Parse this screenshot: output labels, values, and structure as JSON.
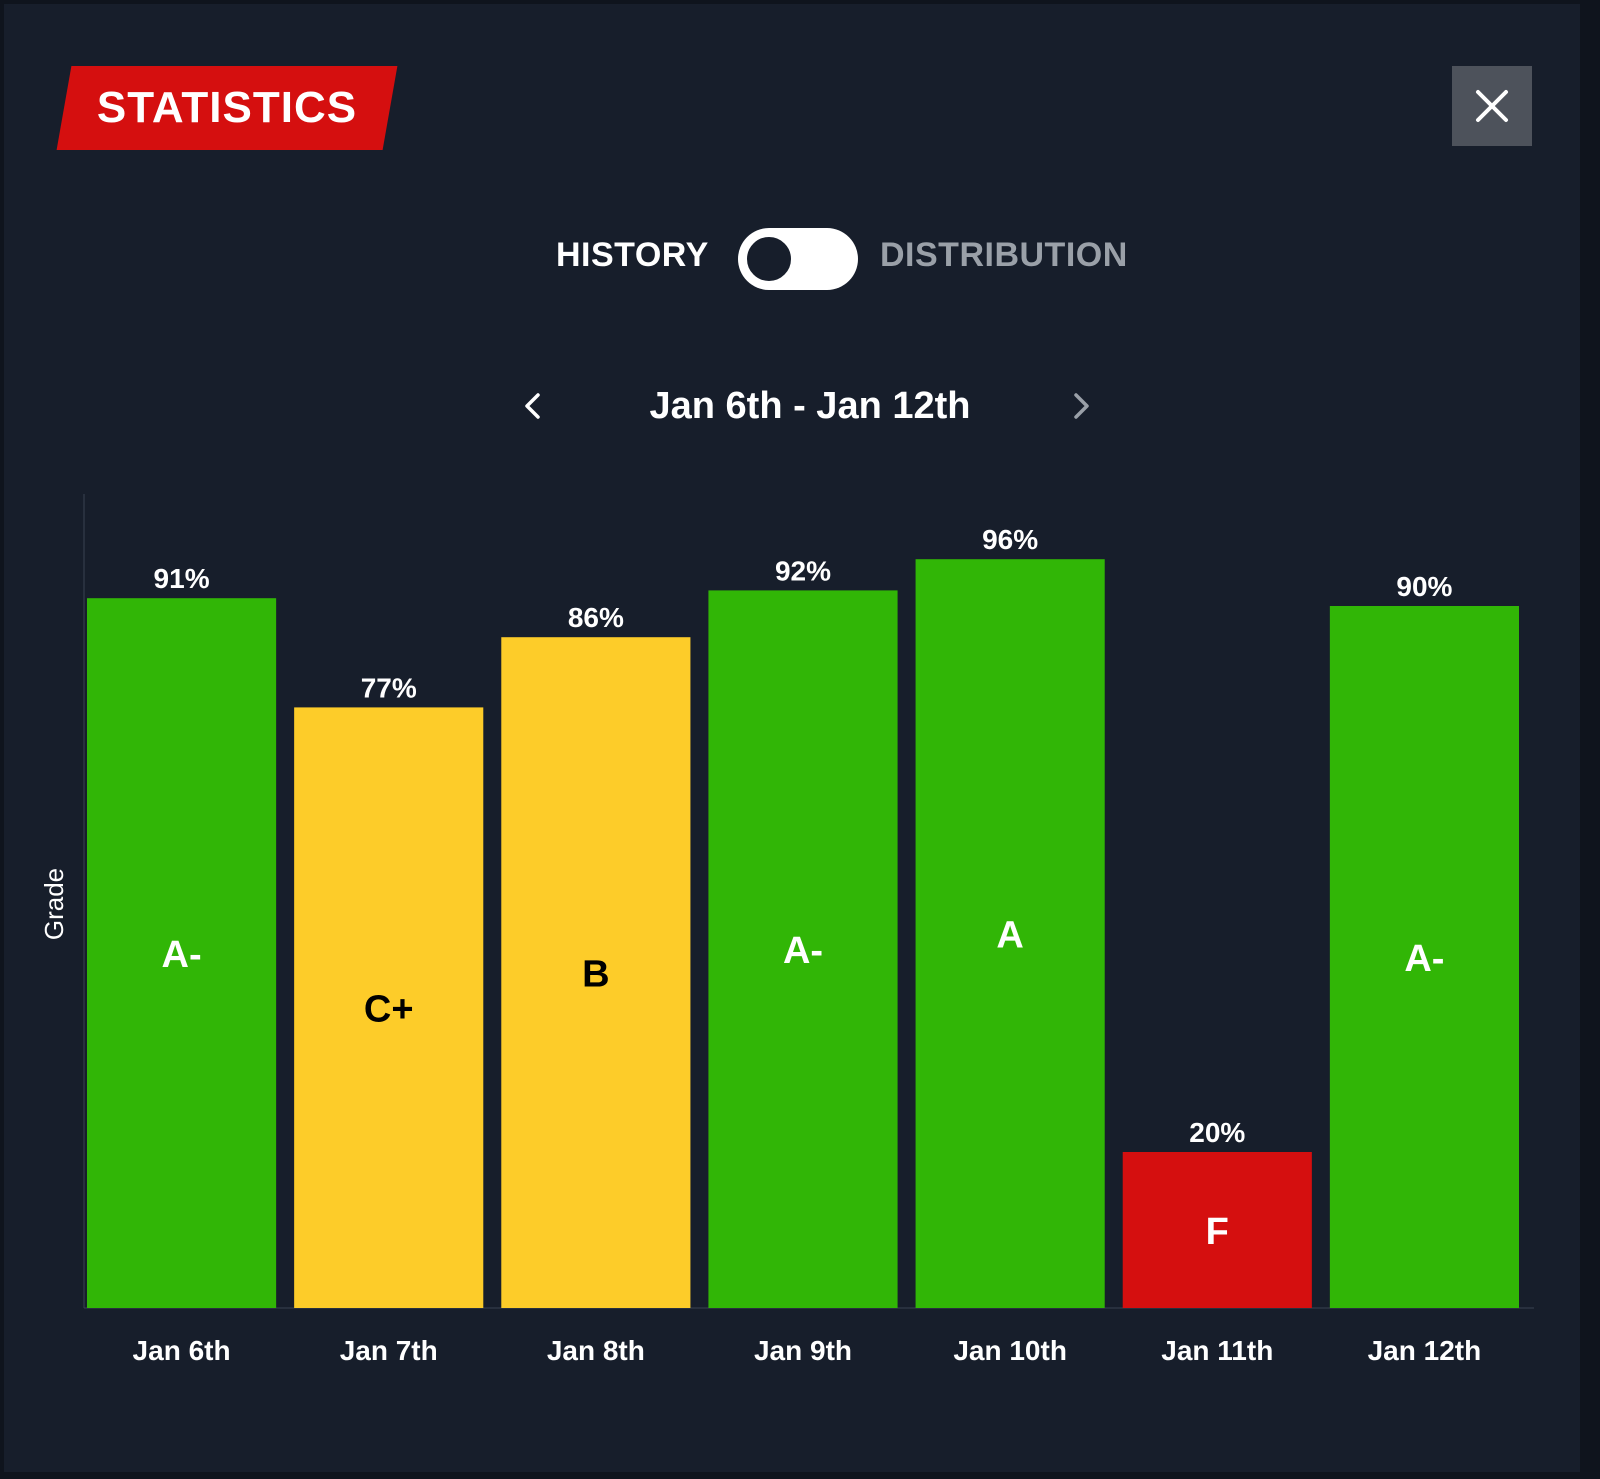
{
  "header": {
    "title": "STATISTICS",
    "close_icon": "close-icon"
  },
  "toggle": {
    "left_label": "HISTORY",
    "right_label": "DISTRIBUTION",
    "state": "HISTORY"
  },
  "week_nav": {
    "label": "Jan 6th - Jan 12th",
    "prev_icon": "chevron-left-icon",
    "next_icon": "chevron-right-icon"
  },
  "colors": {
    "background": "#171e2b",
    "badge": "#d50f0f",
    "green": "#31b606",
    "yellow": "#fdcc29",
    "red": "#d50f0f"
  },
  "chart_data": {
    "type": "bar",
    "ylabel": "Grade",
    "categories": [
      "Jan 6th",
      "Jan 7th",
      "Jan 8th",
      "Jan 9th",
      "Jan 10th",
      "Jan 11th",
      "Jan 12th"
    ],
    "values": [
      91,
      77,
      86,
      92,
      96,
      20,
      90
    ],
    "value_labels": [
      "91%",
      "77%",
      "86%",
      "92%",
      "96%",
      "20%",
      "90%"
    ],
    "grades": [
      "A-",
      "C+",
      "B",
      "A-",
      "A",
      "F",
      "A-"
    ],
    "bar_colors": [
      "#31b606",
      "#fdcc29",
      "#fdcc29",
      "#31b606",
      "#31b606",
      "#d50f0f",
      "#31b606"
    ],
    "grade_text_colors": [
      "#ffffff",
      "#000000",
      "#000000",
      "#ffffff",
      "#ffffff",
      "#ffffff",
      "#ffffff"
    ],
    "ylim": [
      0,
      100
    ],
    "grid": false
  }
}
